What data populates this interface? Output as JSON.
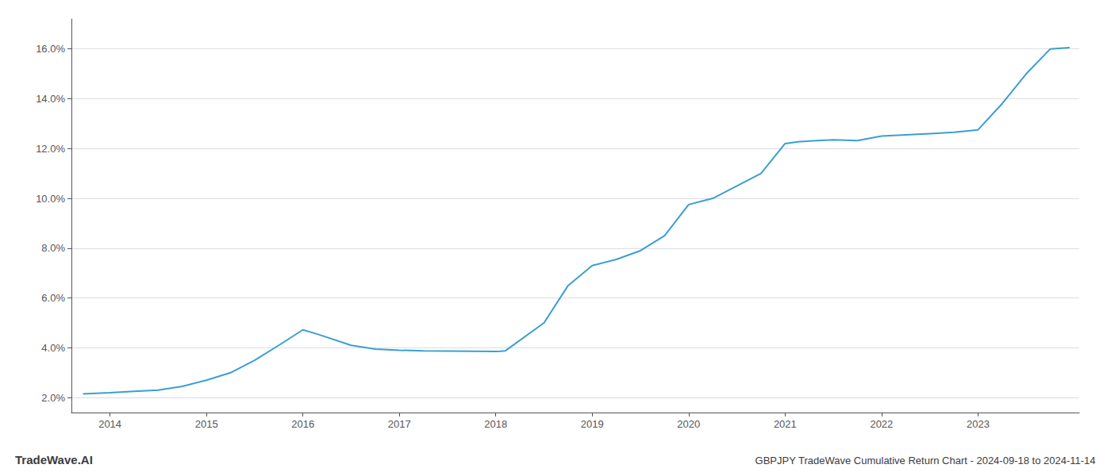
{
  "chart_data": {
    "type": "line",
    "title": "GBPJPY TradeWave Cumulative Return Chart - 2024-09-18 to 2024-11-14",
    "annotations": [
      "TradeWave.AI"
    ],
    "x": [
      2013.72,
      2014.0,
      2014.25,
      2014.5,
      2014.75,
      2015.0,
      2015.25,
      2015.5,
      2015.75,
      2016.0,
      2016.15,
      2016.5,
      2016.75,
      2017.0,
      2017.25,
      2017.5,
      2017.75,
      2018.0,
      2018.05,
      2018.1,
      2018.5,
      2018.75,
      2019.0,
      2019.25,
      2019.5,
      2019.75,
      2020.0,
      2020.25,
      2020.5,
      2020.75,
      2021.0,
      2021.15,
      2021.25,
      2021.5,
      2021.75,
      2022.0,
      2022.25,
      2022.5,
      2022.75,
      2023.0,
      2023.25,
      2023.5,
      2023.75,
      2023.95
    ],
    "values": [
      2.15,
      2.2,
      2.25,
      2.3,
      2.45,
      2.7,
      3.0,
      3.5,
      4.1,
      4.72,
      4.55,
      4.1,
      3.95,
      3.9,
      3.88,
      3.87,
      3.86,
      3.85,
      3.86,
      3.88,
      5.0,
      6.5,
      7.3,
      7.55,
      7.9,
      8.5,
      9.75,
      10.0,
      10.5,
      11.0,
      12.2,
      12.28,
      12.3,
      12.35,
      12.32,
      12.5,
      12.55,
      12.6,
      12.65,
      12.75,
      13.8,
      15.0,
      16.0,
      16.05
    ],
    "color": "#3a9fd1",
    "xlim": [
      2013.6,
      2024.05
    ],
    "xticks": [
      2014,
      2015,
      2016,
      2017,
      2018,
      2019,
      2020,
      2021,
      2022,
      2023
    ],
    "ylim": [
      1.4,
      17.2
    ],
    "yticks": [
      {
        "value": 2.0,
        "label": "2.0%"
      },
      {
        "value": 4.0,
        "label": "4.0%"
      },
      {
        "value": 6.0,
        "label": "6.0%"
      },
      {
        "value": 8.0,
        "label": "8.0%"
      },
      {
        "value": 10.0,
        "label": "10.0%"
      },
      {
        "value": 12.0,
        "label": "12.0%"
      },
      {
        "value": 14.0,
        "label": "14.0%"
      },
      {
        "value": 16.0,
        "label": "16.0%"
      }
    ],
    "grid": true
  }
}
